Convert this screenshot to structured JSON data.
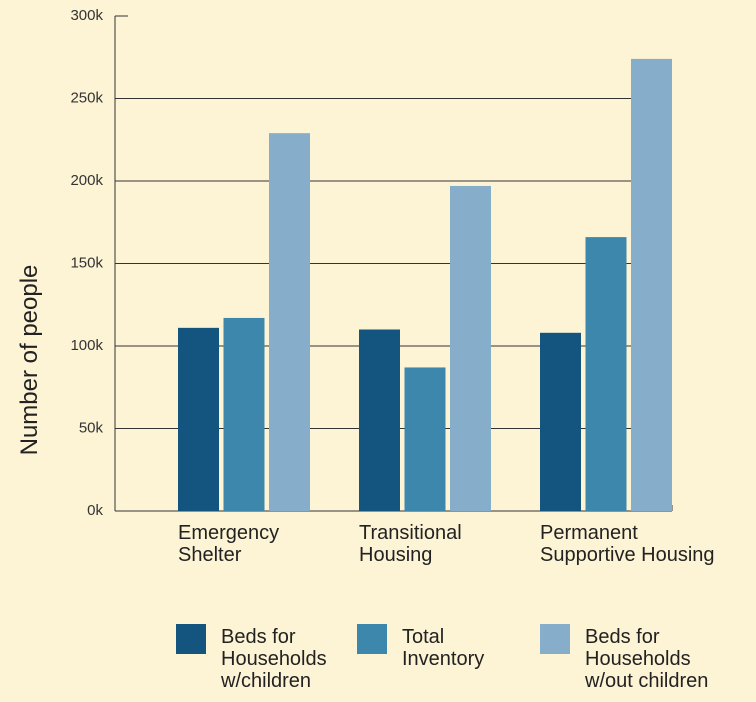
{
  "chart_data": {
    "type": "bar",
    "y_label": "Number of people",
    "categories": [
      "Emergency\nShelter",
      "Transitional\nHousing",
      "Permanent\nSupportive Housing"
    ],
    "series": [
      {
        "name": "Beds for\nHouseholds\nw/children",
        "color": "#13557e",
        "values": [
          111000,
          110000,
          108000
        ]
      },
      {
        "name": "Total\nInventory",
        "color": "#3d87ad",
        "values": [
          117000,
          87000,
          166000
        ]
      },
      {
        "name": "Beds for\nHouseholds\nw/out children",
        "color": "#86aecb",
        "values": [
          229000,
          197000,
          274000
        ]
      }
    ],
    "ylim": [
      0,
      300000
    ],
    "yticks": [
      {
        "value": 0,
        "label": "0k"
      },
      {
        "value": 50000,
        "label": "50k"
      },
      {
        "value": 100000,
        "label": "100k"
      },
      {
        "value": 150000,
        "label": "150k"
      },
      {
        "value": 200000,
        "label": "200k"
      },
      {
        "value": 250000,
        "label": "250k"
      },
      {
        "value": 300000,
        "label": "300k"
      }
    ],
    "grid": true
  }
}
